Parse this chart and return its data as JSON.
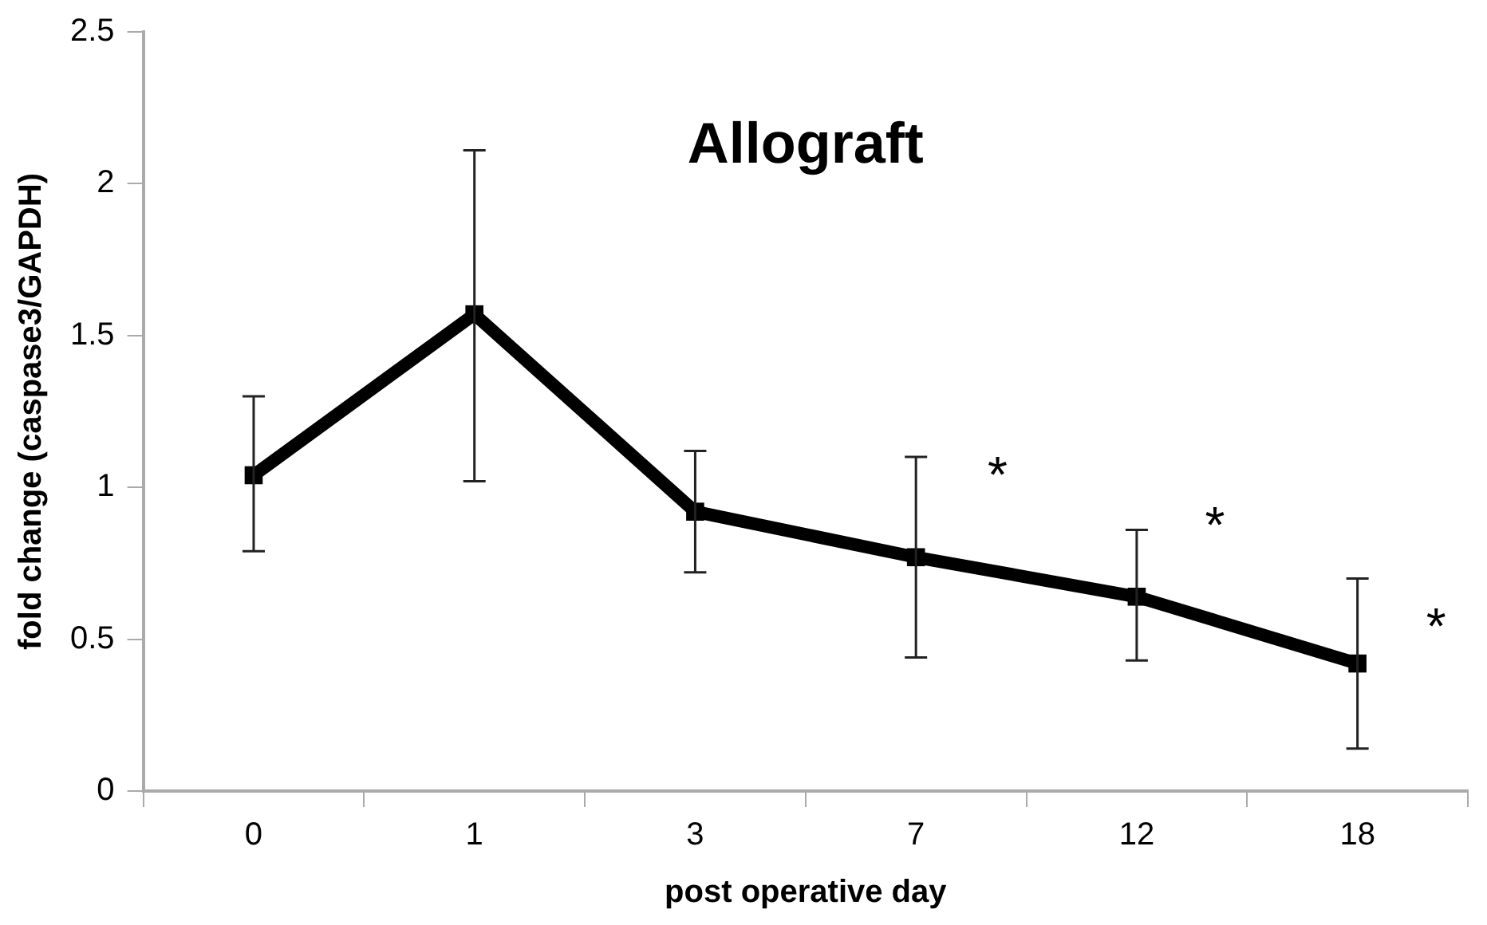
{
  "chart_data": {
    "type": "line",
    "title": "Allograft",
    "xlabel": "post operative day",
    "ylabel": "fold change (caspase3/GAPDH)",
    "categories": [
      "0",
      "1",
      "3",
      "7",
      "12",
      "18"
    ],
    "series": [
      {
        "color": "#000000",
        "values": [
          1.04,
          1.57,
          0.92,
          0.77,
          0.64,
          0.42
        ],
        "errors": [
          [
            0.79,
            1.3
          ],
          [
            1.02,
            2.11
          ],
          [
            0.72,
            1.12
          ],
          [
            0.44,
            1.1
          ],
          [
            0.43,
            0.86
          ],
          [
            0.14,
            0.7
          ]
        ]
      }
    ],
    "ylim": [
      0,
      2.5
    ],
    "yticks": [
      0,
      0.5,
      1,
      1.5,
      2,
      2.5
    ],
    "grid": false,
    "legend": false,
    "marker": "square",
    "line_style": "solid",
    "annotations": [
      "*",
      "*",
      "*"
    ]
  }
}
